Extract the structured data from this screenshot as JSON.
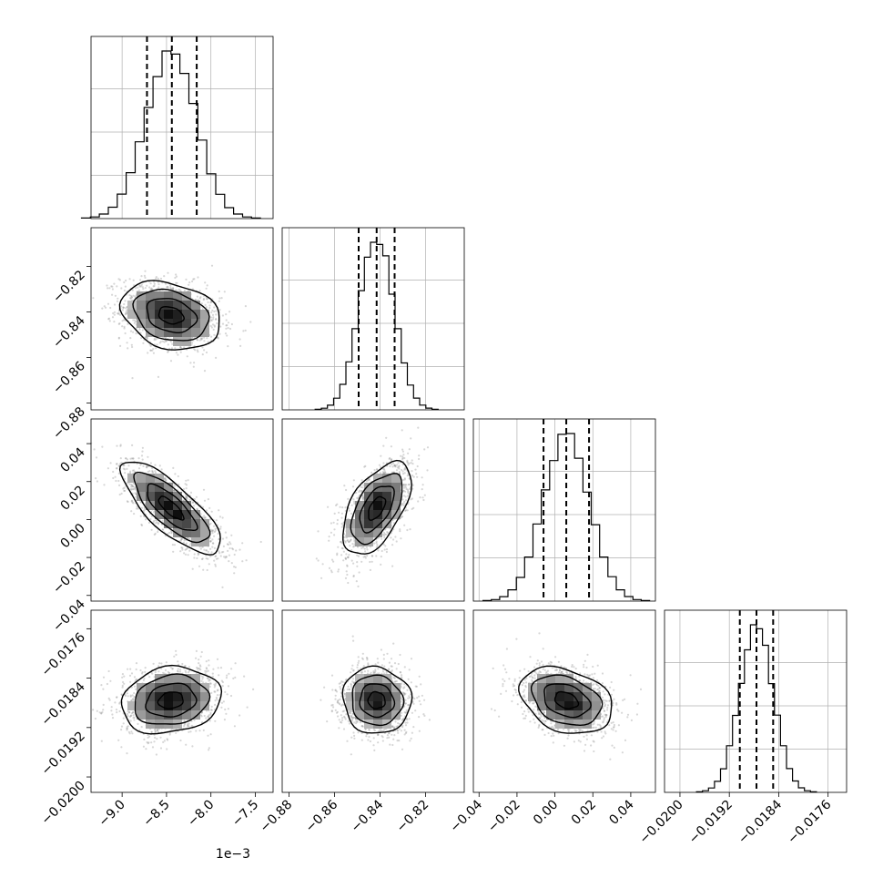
{
  "chart_data": {
    "type": "corner",
    "description_of_panels": "lower-triangle 2D density (scatter + shaded histogram + contours), diagonal 1D histograms with dashed quantile lines",
    "parameters": [
      {
        "index": 0,
        "range": [
          -9.35,
          -7.3
        ],
        "ticks": [
          -9.0,
          -8.5,
          -8.0,
          -7.5
        ],
        "tick_labels": [
          "−9.0",
          "−8.5",
          "−8.0",
          "−7.5"
        ],
        "offset_label": "1e−3",
        "mean": -8.45,
        "sd": 0.28,
        "quantiles": [
          -8.72,
          -8.44,
          -8.16
        ]
      },
      {
        "index": 1,
        "range": [
          -0.883,
          -0.803
        ],
        "ticks": [
          -0.88,
          -0.86,
          -0.84,
          -0.82
        ],
        "tick_labels": [
          "−0.88",
          "−0.86",
          "−0.84",
          "−0.82"
        ],
        "offset_label": "",
        "mean": -0.8415,
        "sd": 0.0075,
        "quantiles": [
          -0.8494,
          -0.8415,
          -0.8336
        ]
      },
      {
        "index": 2,
        "range": [
          -0.043,
          0.053
        ],
        "ticks": [
          -0.04,
          -0.02,
          0.0,
          0.02,
          0.04
        ],
        "tick_labels": [
          "−0.04",
          "−0.02",
          "0.00",
          "0.02",
          "0.04"
        ],
        "offset_label": "",
        "mean": 0.006,
        "sd": 0.0122,
        "quantiles": [
          -0.006,
          0.006,
          0.018
        ]
      },
      {
        "index": 3,
        "range": [
          -0.02025,
          -0.0173
        ],
        "ticks": [
          -0.02,
          -0.0192,
          -0.0184,
          -0.0176
        ],
        "tick_labels": [
          "−0.0200",
          "−0.0192",
          "−0.0184",
          "−0.0176"
        ],
        "offset_label": "",
        "mean": -0.01876,
        "sd": 0.00027,
        "quantiles": [
          -0.01903,
          -0.01876,
          -0.01849
        ]
      }
    ],
    "correlations": [
      {
        "x": 0,
        "y": 1,
        "rho": -0.25
      },
      {
        "x": 0,
        "y": 2,
        "rho": -0.78
      },
      {
        "x": 1,
        "y": 2,
        "rho": 0.55
      },
      {
        "x": 0,
        "y": 3,
        "rho": 0.15
      },
      {
        "x": 1,
        "y": 3,
        "rho": -0.05
      },
      {
        "x": 2,
        "y": 3,
        "rho": -0.3
      }
    ],
    "hist_bins": 20,
    "grid": true,
    "contour_levels_sigma": [
      0.5,
      1.0,
      1.5,
      2.0
    ],
    "colors": {
      "line": "#000000",
      "grid": "#b0b0b0",
      "scatter": "#8c8c8c",
      "density_max": "#000000"
    }
  }
}
